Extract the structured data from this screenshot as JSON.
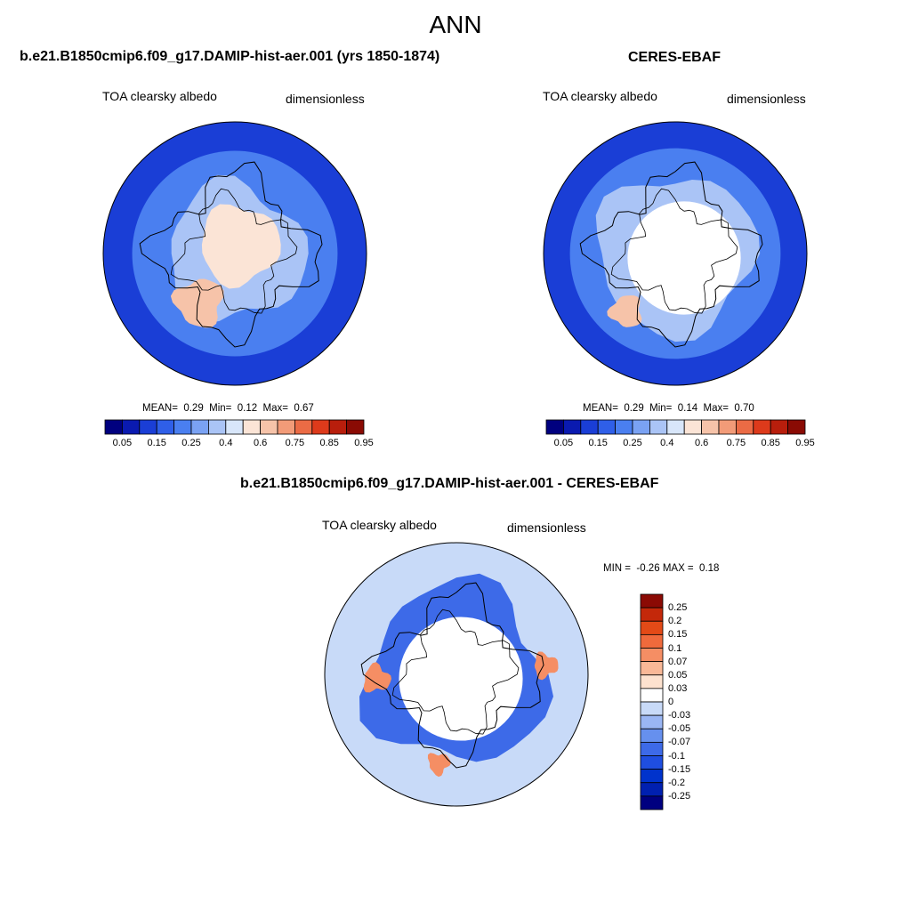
{
  "title": "ANN",
  "panels": [
    {
      "id": "model",
      "case_title": "b.e21.B1850cmip6.f09_g17.DAMIP-hist-aer.001 (yrs 1850-1874)",
      "variable": "TOA clearsky albedo",
      "units": "dimensionless",
      "stats": {
        "mean_label": "MEAN=",
        "mean": "0.29",
        "min_label": "Min=",
        "min": "0.12",
        "max_label": "Max=",
        "max": "0.67"
      }
    },
    {
      "id": "obs",
      "case_title": "CERES-EBAF",
      "variable": "TOA clearsky albedo",
      "units": "dimensionless",
      "stats": {
        "mean_label": "MEAN=",
        "mean": "0.29",
        "min_label": "Min=",
        "min": "0.14",
        "max_label": "Max=",
        "max": "0.70"
      }
    },
    {
      "id": "diff",
      "case_title": "b.e21.B1850cmip6.f09_g17.DAMIP-hist-aer.001 - CERES-EBAF",
      "variable": "TOA clearsky albedo",
      "units": "dimensionless",
      "stats": {
        "min_label": "MIN =",
        "min": "-0.26",
        "max_label": "MAX =",
        "max": "0.18"
      }
    }
  ],
  "colorbar_abs": {
    "colors": [
      "#00007f",
      "#0a1ab0",
      "#1a3ed6",
      "#2f5fe8",
      "#4a7ff0",
      "#7aa2f3",
      "#aac4f6",
      "#d8e6fa",
      "#fbe4d6",
      "#f6c3a9",
      "#f29b78",
      "#eb6b45",
      "#dd3a1b",
      "#b81e0c",
      "#8a0b04"
    ],
    "tick_labels": [
      "0.05",
      "0.15",
      "0.25",
      "0.4",
      "0.6",
      "0.75",
      "0.85",
      "0.95"
    ]
  },
  "colorbar_diff": {
    "colors": [
      "#000080",
      "#0020b0",
      "#0033cc",
      "#1f4ee0",
      "#3d6ae8",
      "#6690ee",
      "#9ab6f4",
      "#c8daf8",
      "#ffffff",
      "#fde2cf",
      "#f9b897",
      "#f58e64",
      "#f06a3c",
      "#e34a17",
      "#c4280a",
      "#8b0a04"
    ],
    "tick_labels": [
      "0.25",
      "0.2",
      "0.15",
      "0.1",
      "0.07",
      "0.05",
      "0.03",
      "0",
      "-0.03",
      "-0.05",
      "-0.07",
      "-0.1",
      "-0.15",
      "-0.2",
      "-0.25"
    ]
  },
  "map_fill_colors": {
    "ocean_low": "#1a3ed6",
    "ocean_mid": "#4a7ff0",
    "ice_light": "#aac4f6",
    "ice_high": "#fbe4d6",
    "greenland": "#f6c3a9",
    "missing": "#ffffff",
    "diff_neutral": "#c8daf8",
    "diff_negative": "#3d6ae8",
    "diff_positive": "#f58e64"
  }
}
